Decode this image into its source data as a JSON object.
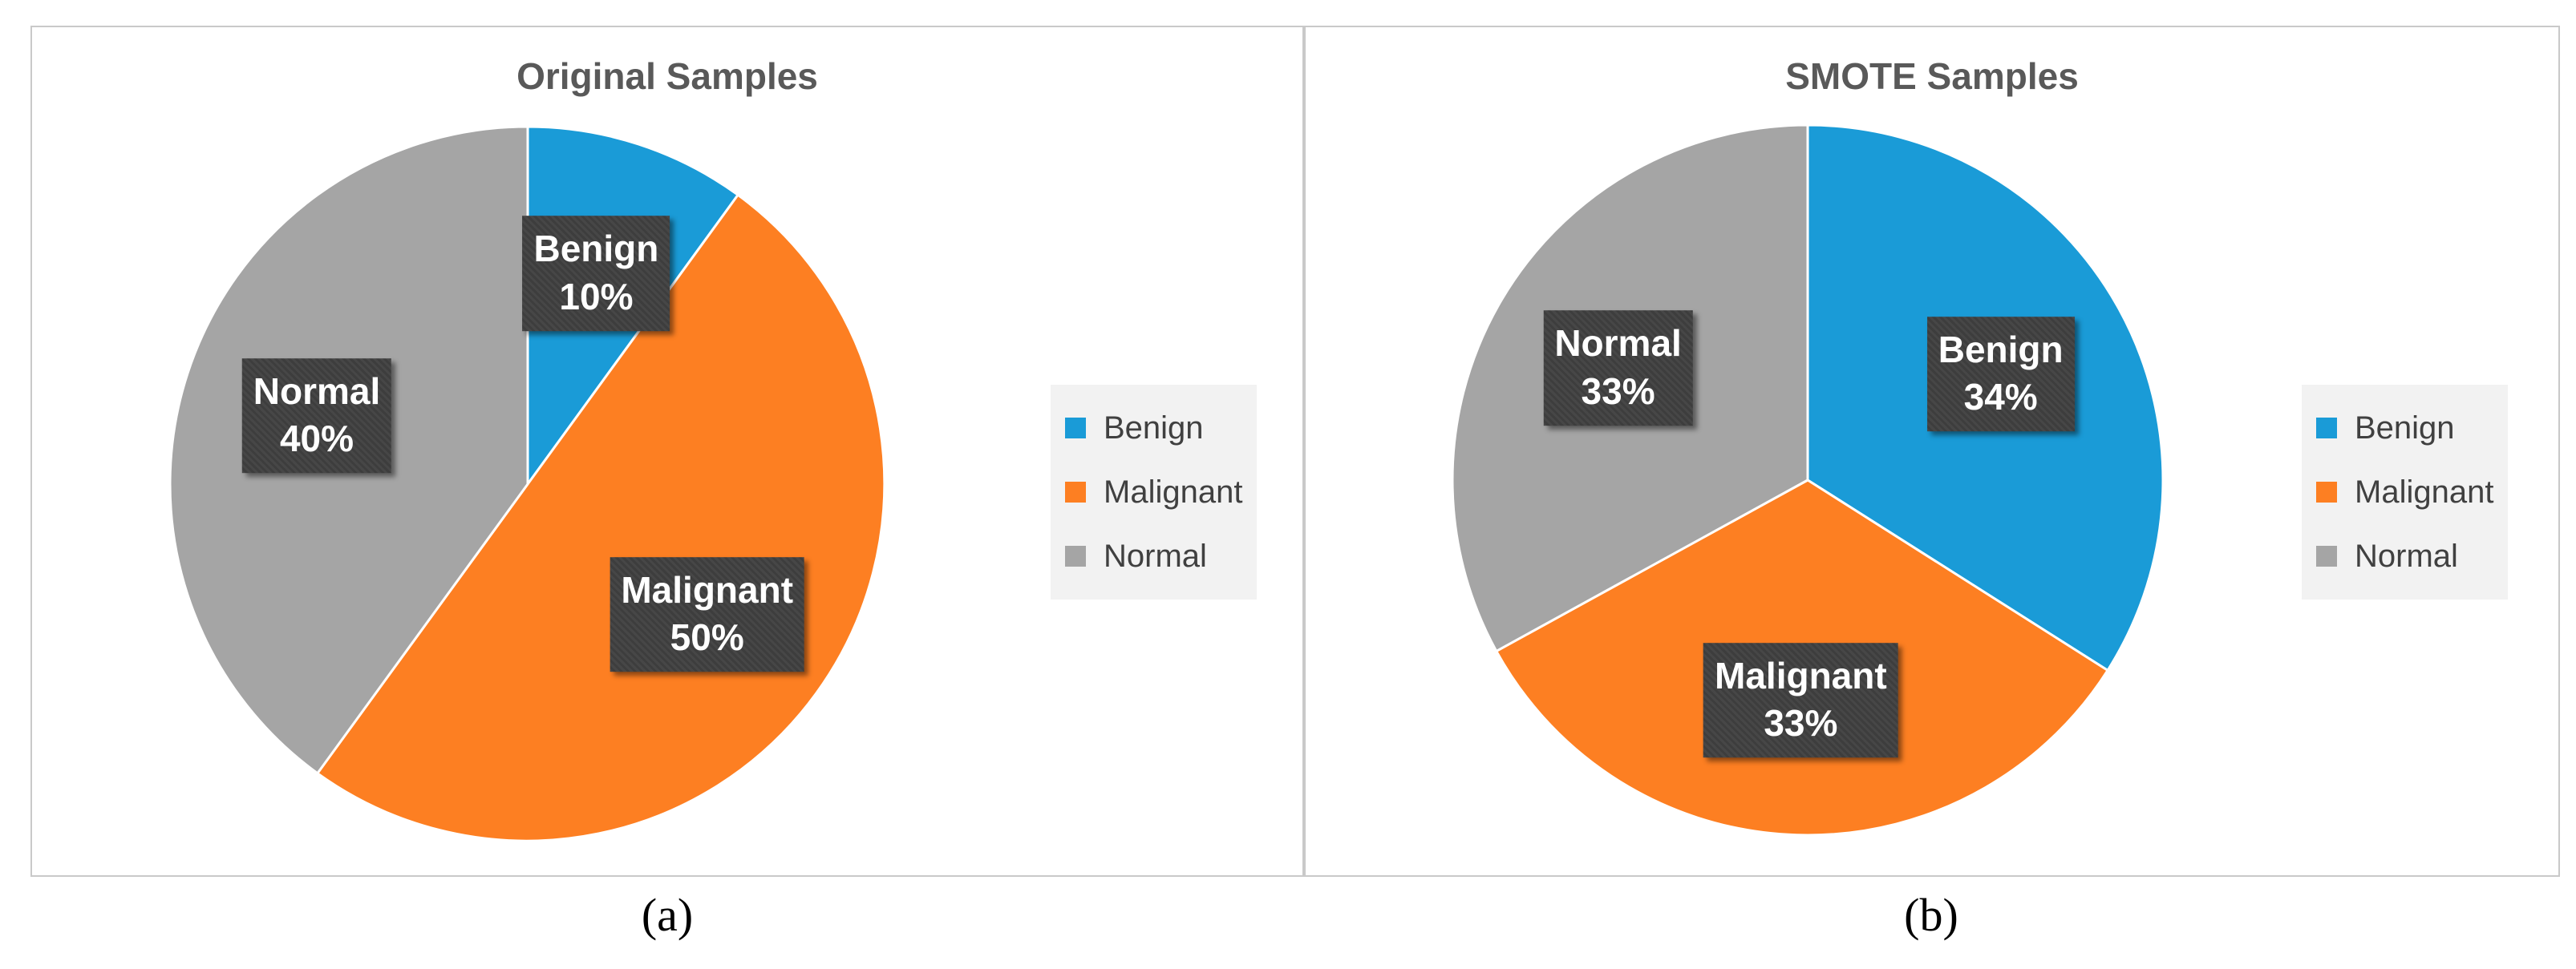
{
  "chart_data": [
    {
      "type": "pie",
      "title": "Original Samples",
      "categories": [
        "Benign",
        "Malignant",
        "Normal"
      ],
      "values": [
        10,
        50,
        40
      ],
      "unit": "%",
      "colors": [
        "#1a9bd7",
        "#fd7f22",
        "#a5a5a5"
      ],
      "legend": {
        "position": "right",
        "entries": [
          "Benign",
          "Malignant",
          "Normal"
        ]
      },
      "data_labels": [
        {
          "category": "Benign",
          "text": "10%"
        },
        {
          "category": "Malignant",
          "text": "50%"
        },
        {
          "category": "Normal",
          "text": "40%"
        }
      ],
      "caption": "(a)"
    },
    {
      "type": "pie",
      "title": "SMOTE Samples",
      "categories": [
        "Benign",
        "Malignant",
        "Normal"
      ],
      "values": [
        34,
        33,
        33
      ],
      "unit": "%",
      "colors": [
        "#1a9bd7",
        "#fd7f22",
        "#a5a5a5"
      ],
      "legend": {
        "position": "right",
        "entries": [
          "Benign",
          "Malignant",
          "Normal"
        ]
      },
      "data_labels": [
        {
          "category": "Benign",
          "text": "34%"
        },
        {
          "category": "Malignant",
          "text": "33%"
        },
        {
          "category": "Normal",
          "text": "33%"
        }
      ],
      "caption": "(b)"
    }
  ]
}
